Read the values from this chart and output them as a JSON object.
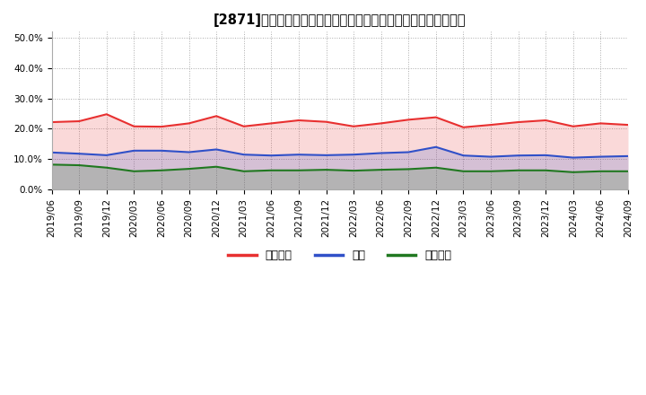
{
  "title": "[2871]　売上債権、在庫、買入債務の総資産に対する比率の推移",
  "ylim": [
    0.0,
    0.52
  ],
  "yticks": [
    0.0,
    0.1,
    0.2,
    0.3,
    0.4,
    0.5
  ],
  "ytick_labels": [
    "0.0%",
    "10.0%",
    "20.0%",
    "30.0%",
    "40.0%",
    "50.0%"
  ],
  "x_labels": [
    "2019/06",
    "2019/09",
    "2019/12",
    "2020/03",
    "2020/06",
    "2020/09",
    "2020/12",
    "2021/03",
    "2021/06",
    "2021/09",
    "2021/12",
    "2022/03",
    "2022/06",
    "2022/09",
    "2022/12",
    "2023/03",
    "2023/06",
    "2023/09",
    "2023/12",
    "2024/03",
    "2024/06",
    "2024/09"
  ],
  "series_urikake": [
    0.222,
    0.225,
    0.248,
    0.208,
    0.207,
    0.218,
    0.242,
    0.208,
    0.218,
    0.228,
    0.223,
    0.208,
    0.218,
    0.23,
    0.238,
    0.205,
    0.213,
    0.222,
    0.228,
    0.208,
    0.218,
    0.213
  ],
  "series_zaiko": [
    0.122,
    0.118,
    0.113,
    0.128,
    0.128,
    0.123,
    0.132,
    0.115,
    0.112,
    0.115,
    0.113,
    0.115,
    0.12,
    0.123,
    0.14,
    0.112,
    0.108,
    0.112,
    0.113,
    0.105,
    0.108,
    0.11
  ],
  "series_kaiire": [
    0.082,
    0.08,
    0.072,
    0.06,
    0.063,
    0.068,
    0.075,
    0.06,
    0.063,
    0.063,
    0.065,
    0.062,
    0.065,
    0.067,
    0.072,
    0.06,
    0.06,
    0.063,
    0.063,
    0.057,
    0.06,
    0.06
  ],
  "color_urikake": "#e83030",
  "color_zaiko": "#3050c8",
  "color_kaiire": "#207820",
  "fill_alpha_urikake": 0.18,
  "fill_alpha_zaiko": 0.18,
  "fill_alpha_kaiire": 0.18,
  "legend_labels": [
    "売上債権",
    "在庫",
    "買入債務"
  ],
  "background_color": "#ffffff",
  "plot_bg_color": "#ffffff",
  "grid_color": "#aaaaaa",
  "title_fontsize": 10.5,
  "tick_fontsize": 7.5,
  "legend_fontsize": 9,
  "linewidth": 1.5
}
